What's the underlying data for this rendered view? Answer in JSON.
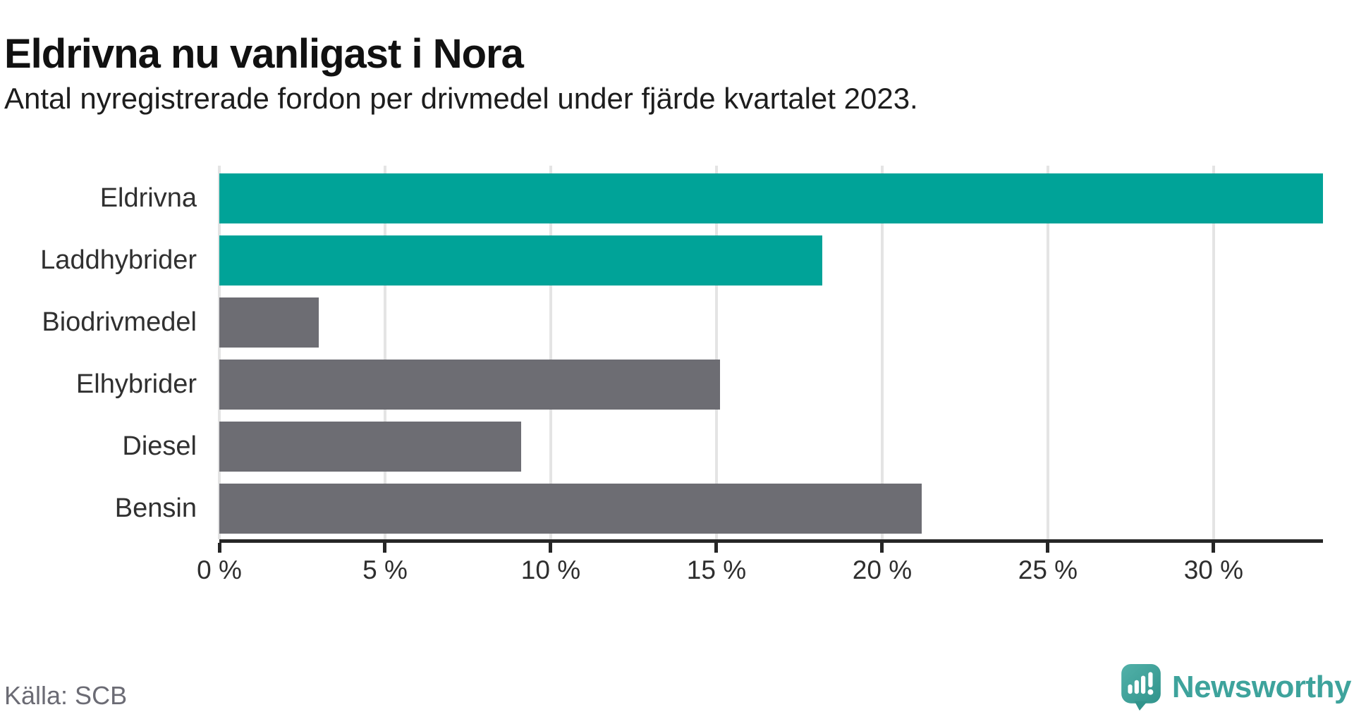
{
  "header": {
    "title": "Eldrivna nu vanligast i Nora",
    "subtitle": "Antal nyregistrerade fordon per drivmedel under fjärde kvartalet 2023."
  },
  "chart_data": {
    "type": "bar",
    "orientation": "horizontal",
    "title": "Eldrivna nu vanligast i Nora",
    "subtitle": "Antal nyregistrerade fordon per drivmedel under fjärde kvartalet 2023.",
    "categories": [
      "Eldrivna",
      "Laddhybrider",
      "Biodrivmedel",
      "Elhybrider",
      "Diesel",
      "Bensin"
    ],
    "values": [
      33.3,
      18.2,
      3.0,
      15.1,
      9.1,
      21.2
    ],
    "unit": "%",
    "highlighted": [
      true,
      true,
      false,
      false,
      false,
      false
    ],
    "xlim": [
      0,
      33.3
    ],
    "xticks": [
      0,
      5,
      10,
      15,
      20,
      25,
      30
    ],
    "xtick_labels": [
      "0 %",
      "5 %",
      "10 %",
      "15 %",
      "20 %",
      "25 %",
      "30 %"
    ],
    "grid": "vertical-gridlines",
    "legend": "none",
    "source": "Källa: SCB"
  },
  "colors": {
    "highlight_bar": "#00A398",
    "default_bar": "#6D6D73",
    "gridline": "#E4E4E4",
    "axis": "#262626",
    "label_text": "#303030",
    "muted_text": "#6B6B74",
    "brand_teal": "#3EA39C"
  },
  "footer": {
    "source": "Källa: SCB",
    "brand_name": "Newsworthy"
  }
}
